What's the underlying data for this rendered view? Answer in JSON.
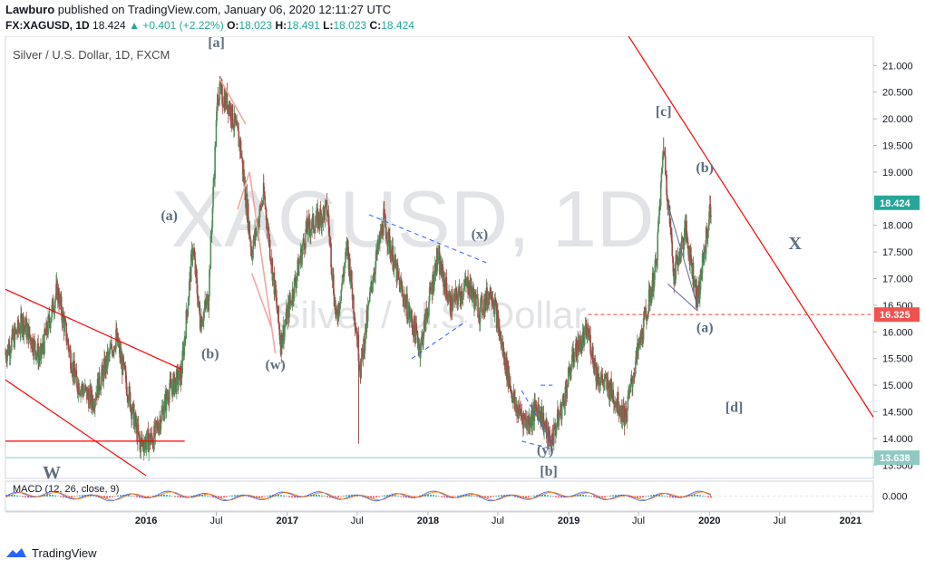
{
  "header": {
    "publisher": "Lawburo",
    "published_text": "published on TradingView.com, January 06, 2020 12:11:27 UTC",
    "symbol": "FX:XAGUSD, 1D",
    "last": "18.424",
    "change": "+0.401 (+2.22%)",
    "change_arrow": "▲",
    "open_label": "O:",
    "open": "18.023",
    "high_label": "H:",
    "high": "18.491",
    "low_label": "L:",
    "low": "18.023",
    "close_label": "C:",
    "close": "18.424"
  },
  "footer": {
    "brand": "TradingView"
  },
  "colors": {
    "up": "#26a69a",
    "down": "#ef5350",
    "candle_up": "#538c5a",
    "candle_down": "#9c4b45",
    "trendline": "#ff0000",
    "wedge": "#f4a5a0",
    "triangle": "#2962ff",
    "wave_label": "#5d6d7e",
    "watermark": "#e1e3e6",
    "accent_13638": "#8fc9c2"
  },
  "chart_data": {
    "type": "candlestick",
    "title": "Silver / U.S. Dollar, 1D, FXCM",
    "watermark_symbol": "XAGUSD, 1D",
    "watermark_name": "Silver / U.S. Dollar",
    "x_tick_labels": [
      "2016",
      "Jul",
      "2017",
      "Jul",
      "2018",
      "Jul",
      "2019",
      "Jul",
      "2020",
      "Jul",
      "2021"
    ],
    "x_ticks": [
      "2016-01-01",
      "2016-07-01",
      "2017-01-01",
      "2017-07-01",
      "2018-01-01",
      "2018-07-01",
      "2019-01-01",
      "2019-07-01",
      "2020-01-01",
      "2020-07-01",
      "2021-01-01"
    ],
    "x_range": [
      "2015-01-01",
      "2021-03-01"
    ],
    "y_range": [
      13.25,
      21.55
    ],
    "y_ticks": [
      13.5,
      14.0,
      14.5,
      15.0,
      15.5,
      16.0,
      16.5,
      17.0,
      17.5,
      18.0,
      18.5,
      19.0,
      19.5,
      20.0,
      20.5,
      21.0,
      21.5
    ],
    "y_tick_labels": [
      "13.500",
      "14.000",
      "14.500",
      "15.000",
      "15.500",
      "16.000",
      "16.500",
      "17.000",
      "17.500",
      "18.000",
      "18.500",
      "19.000",
      "19.500",
      "20.000",
      "20.500",
      "21.000",
      "21.500"
    ],
    "price_labels": [
      {
        "value": 18.424,
        "label": "18.424",
        "color": "#26a69a"
      },
      {
        "value": 16.325,
        "label": "16.325",
        "color": "#ef5350"
      },
      {
        "value": 13.638,
        "label": "13.638",
        "color": "#8fc9c2"
      }
    ],
    "series_close": [
      [
        "2015-01-01",
        15.6
      ],
      [
        "2015-02-15",
        16.2
      ],
      [
        "2015-04-01",
        15.5
      ],
      [
        "2015-05-15",
        16.8
      ],
      [
        "2015-07-01",
        15.1
      ],
      [
        "2015-08-15",
        14.7
      ],
      [
        "2015-10-15",
        15.9
      ],
      [
        "2015-12-15",
        13.9
      ],
      [
        "2016-01-20",
        14.0
      ],
      [
        "2016-03-01",
        14.9
      ],
      [
        "2016-04-01",
        15.2
      ],
      [
        "2016-05-01",
        17.6
      ],
      [
        "2016-05-20",
        16.2
      ],
      [
        "2016-06-10",
        16.6
      ],
      [
        "2016-07-05",
        20.5
      ],
      [
        "2016-08-01",
        20.3
      ],
      [
        "2016-09-01",
        19.5
      ],
      [
        "2016-10-01",
        17.5
      ],
      [
        "2016-11-01",
        18.6
      ],
      [
        "2016-12-15",
        15.8
      ],
      [
        "2017-01-20",
        16.9
      ],
      [
        "2017-02-20",
        17.9
      ],
      [
        "2017-04-15",
        18.3
      ],
      [
        "2017-05-08",
        16.2
      ],
      [
        "2017-06-06",
        17.6
      ],
      [
        "2017-07-10",
        15.3
      ],
      [
        "2017-08-10",
        17.0
      ],
      [
        "2017-09-08",
        18.1
      ],
      [
        "2017-10-15",
        17.0
      ],
      [
        "2017-12-12",
        15.7
      ],
      [
        "2018-01-25",
        17.4
      ],
      [
        "2018-03-01",
        16.5
      ],
      [
        "2018-04-15",
        16.9
      ],
      [
        "2018-05-15",
        16.4
      ],
      [
        "2018-06-15",
        16.8
      ],
      [
        "2018-07-15",
        15.6
      ],
      [
        "2018-08-15",
        14.6
      ],
      [
        "2018-09-15",
        14.3
      ],
      [
        "2018-10-15",
        14.6
      ],
      [
        "2018-11-14",
        13.9
      ],
      [
        "2018-12-15",
        14.6
      ],
      [
        "2019-01-15",
        15.6
      ],
      [
        "2019-02-20",
        16.0
      ],
      [
        "2019-03-15",
        15.2
      ],
      [
        "2019-04-20",
        14.9
      ],
      [
        "2019-05-28",
        14.4
      ],
      [
        "2019-06-20",
        15.3
      ],
      [
        "2019-07-20",
        16.3
      ],
      [
        "2019-08-15",
        17.2
      ],
      [
        "2019-09-04",
        19.5
      ],
      [
        "2019-10-01",
        17.1
      ],
      [
        "2019-11-01",
        17.9
      ],
      [
        "2019-12-01",
        16.6
      ],
      [
        "2020-01-06",
        18.424
      ]
    ],
    "lines": [
      {
        "name": "main-downtrend",
        "color": "#ff0000",
        "points": [
          [
            "2019-06-01",
            21.6
          ],
          [
            "2021-03-01",
            14.4
          ]
        ]
      },
      {
        "name": "left-downtrend",
        "color": "#ff0000",
        "points": [
          [
            "2015-01-01",
            16.8
          ],
          [
            "2016-04-01",
            15.3
          ]
        ]
      },
      {
        "name": "left-downtrend-lower",
        "color": "#ff0000",
        "points": [
          [
            "2015-01-01",
            15.1
          ],
          [
            "2016-01-01",
            13.3
          ]
        ]
      },
      {
        "name": "left-support",
        "color": "#ff0000",
        "points": [
          [
            "2015-01-01",
            13.95
          ],
          [
            "2016-04-10",
            13.95
          ]
        ]
      },
      {
        "name": "resistance-16325",
        "color": "#ef5350",
        "dash": true,
        "points": [
          [
            "2019-02-20",
            16.325
          ],
          [
            "2021-03-01",
            16.325
          ]
        ]
      }
    ],
    "pattern_x": [
      [
        [
          "2017-08-01",
          18.2
        ],
        [
          "2018-06-01",
          17.3
        ]
      ],
      [
        [
          "2017-11-20",
          15.5
        ],
        [
          "2018-04-10",
          16.2
        ]
      ]
    ],
    "pattern_y": [
      [
        [
          "2018-09-01",
          14.9
        ],
        [
          "2018-11-20",
          13.9
        ]
      ],
      [
        [
          "2018-09-01",
          13.95
        ],
        [
          "2018-11-20",
          13.8
        ]
      ],
      [
        [
          "2018-10-20",
          15.0
        ],
        [
          "2018-11-20",
          15.0
        ]
      ]
    ],
    "pattern_a": [
      [
        [
          "2019-09-15",
          18.4
        ],
        [
          "2019-11-30",
          16.5
        ]
      ],
      [
        [
          "2019-09-15",
          16.9
        ],
        [
          "2019-11-30",
          16.4
        ]
      ]
    ],
    "wave_labels": [
      {
        "text": "[a]",
        "date": "2016-07-01",
        "price": 21.35
      },
      {
        "text": "(a)",
        "date": "2016-03-01",
        "price": 18.1
      },
      {
        "text": "(b)",
        "date": "2016-06-15",
        "price": 15.5
      },
      {
        "text": "(w)",
        "date": "2016-12-01",
        "price": 15.3
      },
      {
        "text": "(x)",
        "date": "2018-05-15",
        "price": 17.75
      },
      {
        "text": "(y)",
        "date": "2018-11-01",
        "price": 13.7
      },
      {
        "text": "[b]",
        "date": "2018-11-10",
        "price": 13.3
      },
      {
        "text": "[c]",
        "date": "2019-09-04",
        "price": 20.05
      },
      {
        "text": "(b)",
        "date": "2019-12-20",
        "price": 19.0
      },
      {
        "text": "(a)",
        "date": "2019-12-20",
        "price": 16.0
      },
      {
        "text": "X",
        "date": "2020-08-10",
        "price": 17.55
      },
      {
        "text": "[d]",
        "date": "2020-03-05",
        "price": 14.5
      },
      {
        "text": "W",
        "date": "2015-05-01",
        "price": 13.25
      }
    ],
    "macd": {
      "label": "MACD (12, 26, close, 9)",
      "y_range": [
        -0.6,
        0.6
      ],
      "y_ticks": [
        0.0
      ],
      "y_tick_labels": [
        "0.000"
      ]
    }
  }
}
